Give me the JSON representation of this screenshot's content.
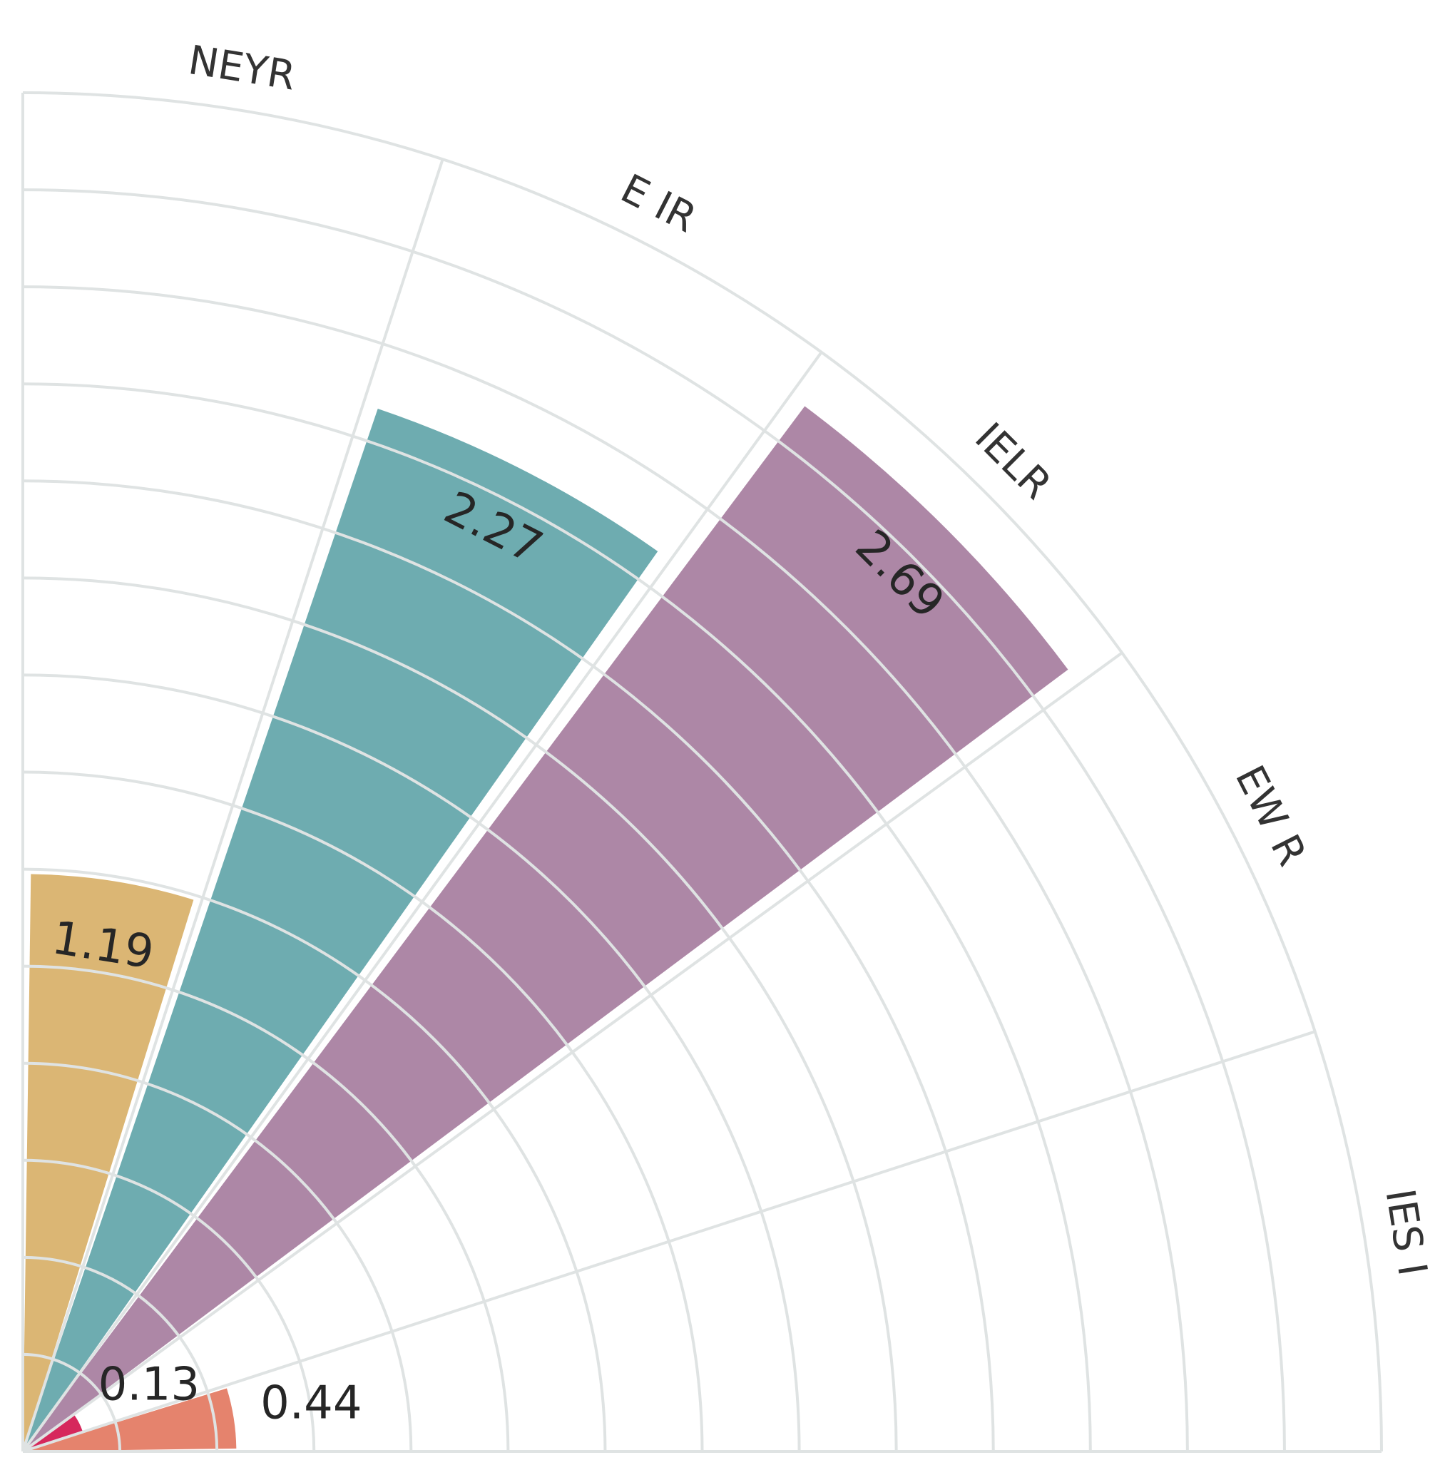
{
  "chart_data": {
    "type": "polar-bar",
    "categories": [
      "NEYR",
      "E IR",
      "IELR",
      "EW R",
      "IES I"
    ],
    "values": [
      1.19,
      2.27,
      2.69,
      0.13,
      0.44
    ],
    "value_labels": [
      "1.19",
      "2.27",
      "2.69",
      "0.13",
      "0.44"
    ],
    "colors": [
      "#dbb674",
      "#6eacb0",
      "#ad87a6",
      "#d6285c",
      "#e5836d"
    ],
    "radial_axis": {
      "range": [
        0,
        2.8
      ],
      "gridlines": 14,
      "tick_labels_shown": false
    },
    "angular_range_degrees": [
      0,
      90
    ],
    "grid": true,
    "title": "",
    "legend": "none"
  }
}
